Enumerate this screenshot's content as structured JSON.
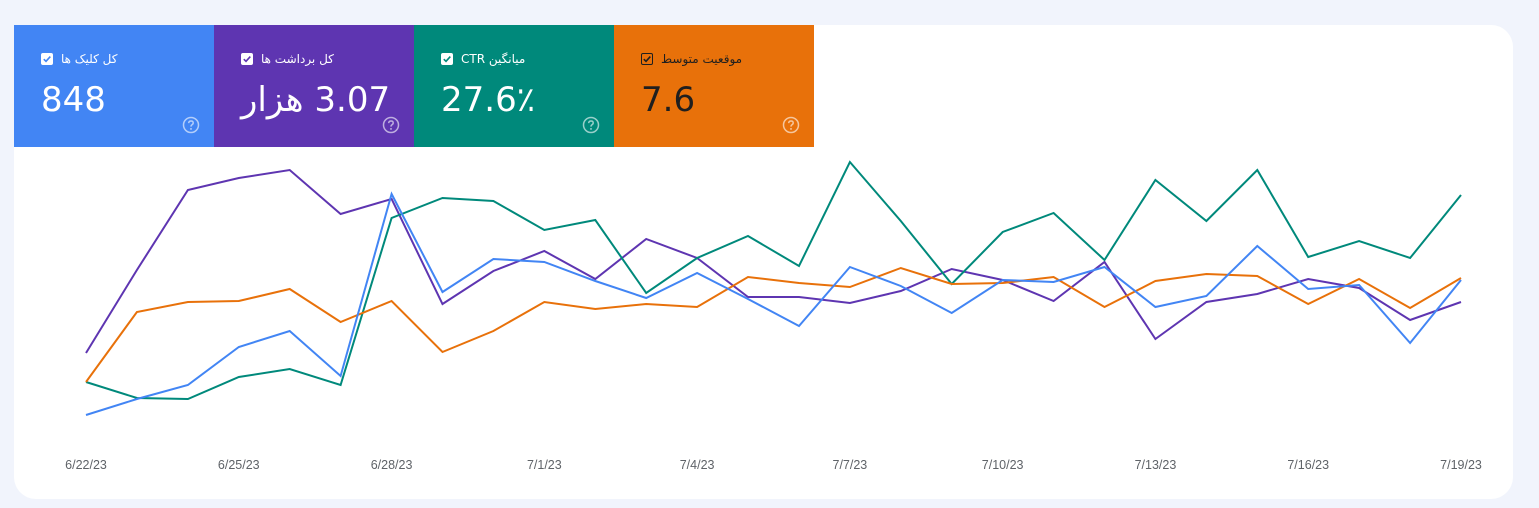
{
  "cards": [
    {
      "label": "کل کلیک ها",
      "value": "848",
      "color": "#4285f4"
    },
    {
      "label": "کل برداشت ها",
      "value": "3.07 هزار",
      "color": "#5e35b1"
    },
    {
      "label": "میانگین CTR",
      "value": "27.6٪",
      "color": "#00897b"
    },
    {
      "label": "موقعیت متوسط",
      "value": "7.6",
      "color": "#e8710a"
    }
  ],
  "help_icon": "help-circle-icon",
  "checkbox_icon": "checkbox-checked-icon",
  "chart_data": {
    "type": "line",
    "x": [
      "6/22/23",
      "6/23/23",
      "6/24/23",
      "6/25/23",
      "6/26/23",
      "6/27/23",
      "6/28/23",
      "6/29/23",
      "6/30/23",
      "7/1/23",
      "7/2/23",
      "7/3/23",
      "7/4/23",
      "7/5/23",
      "7/6/23",
      "7/7/23",
      "7/8/23",
      "7/9/23",
      "7/10/23",
      "7/11/23",
      "7/12/23",
      "7/13/23",
      "7/14/23",
      "7/15/23",
      "7/16/23",
      "7/17/23",
      "7/18/23",
      "7/19/23"
    ],
    "tick_labels": [
      "6/22/23",
      "6/25/23",
      "6/28/23",
      "7/1/23",
      "7/4/23",
      "7/7/23",
      "7/10/23",
      "7/13/23",
      "7/16/23",
      "7/19/23"
    ],
    "y_axes_shown": false,
    "grid": false,
    "series": [
      {
        "name": "کل برداشت ها",
        "color": "#5e35b1",
        "values": [
          72,
          155,
          235,
          247,
          255,
          211,
          226,
          121,
          154,
          174,
          146,
          186,
          167,
          128,
          128,
          122,
          134,
          156,
          145,
          124,
          163,
          86,
          123,
          131,
          146,
          137,
          105,
          123
        ]
      },
      {
        "name": "میانگین CTR",
        "color": "#00897b",
        "values": [
          43,
          27,
          26,
          48,
          56,
          40,
          207,
          227,
          224,
          195,
          205,
          132,
          167,
          189,
          159,
          263,
          204,
          141,
          193,
          212,
          165,
          245,
          204,
          255,
          168,
          184,
          167,
          230
        ]
      },
      {
        "name": "موقعیت متوسط",
        "color": "#e8710a",
        "values": [
          43,
          113,
          123,
          124,
          136,
          103,
          124,
          73,
          94,
          123,
          116,
          121,
          118,
          148,
          142,
          138,
          157,
          141,
          142,
          148,
          118,
          144,
          151,
          149,
          121,
          146,
          117,
          147
        ]
      },
      {
        "name": "کل کلیک ها",
        "color": "#4285f4",
        "values": [
          10,
          26,
          40,
          78,
          94,
          49,
          231,
          133,
          166,
          163,
          144,
          127,
          152,
          126,
          99,
          158,
          139,
          112,
          145,
          143,
          158,
          118,
          129,
          179,
          136,
          140,
          82,
          145
        ]
      }
    ]
  }
}
